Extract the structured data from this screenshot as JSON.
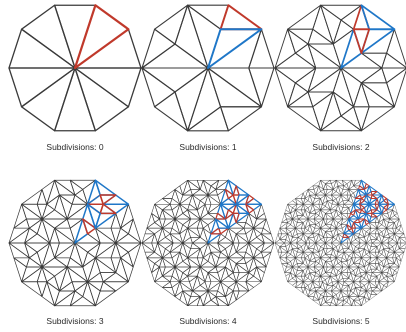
{
  "colors": {
    "mesh": "#3a3a3a",
    "highlight_red": "#c0392b",
    "highlight_blue": "#1f77c8"
  },
  "panels": [
    {
      "level": 0,
      "caption": "Subdivisions: 0"
    },
    {
      "level": 1,
      "caption": "Subdivisions: 1"
    },
    {
      "level": 2,
      "caption": "Subdivisions: 2"
    },
    {
      "level": 3,
      "caption": "Subdivisions: 3"
    },
    {
      "level": 4,
      "caption": "Subdivisions: 4"
    },
    {
      "level": 5,
      "caption": "Subdivisions: 5"
    }
  ]
}
